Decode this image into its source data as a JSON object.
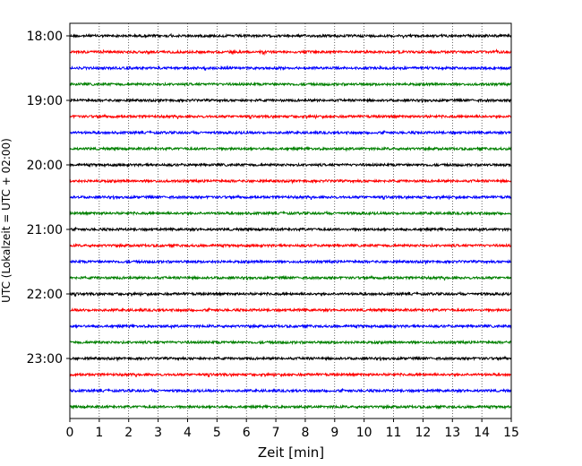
{
  "chart_data": {
    "type": "line",
    "xlabel": "Zeit  [min]",
    "ylabel": "UTC (Lokalzeit = UTC + 02:00)",
    "xlim": [
      0,
      15
    ],
    "x_ticks": [
      "0",
      "1",
      "2",
      "3",
      "4",
      "5",
      "6",
      "7",
      "8",
      "9",
      "10",
      "11",
      "12",
      "13",
      "14",
      "15"
    ],
    "y_ticks": [
      "18:00",
      "19:00",
      "20:00",
      "21:00",
      "22:00",
      "23:00"
    ],
    "trace_start": "18:00",
    "trace_interval_min": 15,
    "trace_count": 24,
    "trace_colors": [
      "#000000",
      "#ff0000",
      "#0000ff",
      "#008000"
    ],
    "grid": "vertical-dotted"
  }
}
